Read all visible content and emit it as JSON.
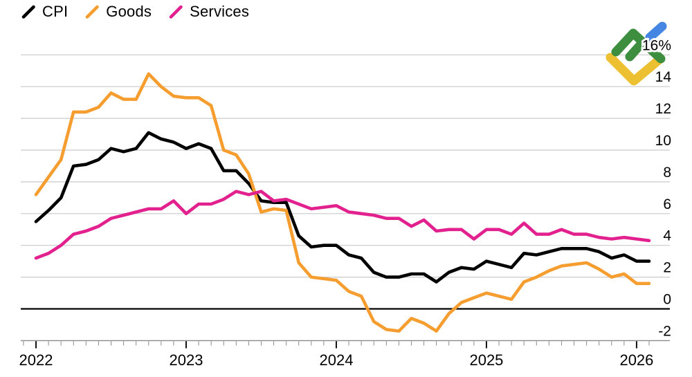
{
  "legend": {
    "items": [
      {
        "label": "CPI",
        "color": "#000000",
        "swatch": "diagonal-line"
      },
      {
        "label": "Goods",
        "color": "#F69D30",
        "swatch": "diagonal-line"
      },
      {
        "label": "Services",
        "color": "#E2208E",
        "swatch": "diagonal-line"
      }
    ]
  },
  "logo": {
    "icon": "litefinance-logo",
    "colors": {
      "green": "#3E8E3F",
      "blue": "#4486E2",
      "yellow": "#EDC032"
    }
  },
  "chart_data": {
    "type": "line",
    "title": "",
    "xlabel": "",
    "ylabel": "",
    "y_unit": "%",
    "grid": "horizontal",
    "legend_position": "top-left",
    "ylim": [
      -2,
      16
    ],
    "yticks": [
      16,
      14,
      12,
      10,
      8,
      6,
      4,
      2,
      0,
      -2
    ],
    "ytick_labels": [
      "16%",
      "14",
      "12",
      "10",
      "8",
      "6",
      "4",
      "2",
      "0",
      "-2"
    ],
    "zero_line": true,
    "x_frequency": "monthly",
    "xticks_month_index": [
      0,
      12,
      24,
      36,
      48
    ],
    "xtick_labels": [
      "2022",
      "2023",
      "2024",
      "2025",
      "2026"
    ],
    "x": [
      "2022-01",
      "2022-02",
      "2022-03",
      "2022-04",
      "2022-05",
      "2022-06",
      "2022-07",
      "2022-08",
      "2022-09",
      "2022-10",
      "2022-11",
      "2022-12",
      "2023-01",
      "2023-02",
      "2023-03",
      "2023-04",
      "2023-05",
      "2023-06",
      "2023-07",
      "2023-08",
      "2023-09",
      "2023-10",
      "2023-11",
      "2023-12",
      "2024-01",
      "2024-02",
      "2024-03",
      "2024-04",
      "2024-05",
      "2024-06",
      "2024-07",
      "2024-08",
      "2024-09",
      "2024-10",
      "2024-11",
      "2024-12",
      "2025-01",
      "2025-02",
      "2025-03",
      "2025-04",
      "2025-05",
      "2025-06",
      "2025-07",
      "2025-08",
      "2025-09",
      "2025-10",
      "2025-11",
      "2025-12",
      "2026-01",
      "2026-02"
    ],
    "series": [
      {
        "name": "CPI",
        "color": "#000000",
        "values": [
          5.5,
          6.2,
          7.0,
          9.0,
          9.1,
          9.4,
          10.1,
          9.9,
          10.1,
          11.1,
          10.7,
          10.5,
          10.1,
          10.4,
          10.1,
          8.7,
          8.7,
          7.9,
          6.8,
          6.7,
          6.7,
          4.6,
          3.9,
          4.0,
          4.0,
          3.4,
          3.2,
          2.3,
          2.0,
          2.0,
          2.2,
          2.2,
          1.7,
          2.3,
          2.6,
          2.5,
          3.0,
          2.8,
          2.6,
          3.5,
          3.4,
          3.6,
          3.8,
          3.8,
          3.8,
          3.6,
          3.2,
          3.4,
          3.0,
          3.0
        ]
      },
      {
        "name": "Goods",
        "color": "#F69D30",
        "values": [
          7.2,
          8.3,
          9.4,
          12.4,
          12.4,
          12.7,
          13.6,
          13.2,
          13.2,
          14.8,
          14.0,
          13.4,
          13.3,
          13.3,
          12.8,
          10.0,
          9.7,
          8.5,
          6.1,
          6.3,
          6.2,
          2.9,
          2.0,
          1.9,
          1.8,
          1.1,
          0.8,
          -0.8,
          -1.3,
          -1.4,
          -0.6,
          -0.9,
          -1.4,
          -0.3,
          0.4,
          0.7,
          1.0,
          0.8,
          0.6,
          1.7,
          2.0,
          2.4,
          2.7,
          2.8,
          2.9,
          2.5,
          2.0,
          2.2,
          1.6,
          1.6
        ]
      },
      {
        "name": "Services",
        "color": "#E2208E",
        "values": [
          3.2,
          3.5,
          4.0,
          4.7,
          4.9,
          5.2,
          5.7,
          5.9,
          6.1,
          6.3,
          6.3,
          6.8,
          6.0,
          6.6,
          6.6,
          6.9,
          7.4,
          7.2,
          7.4,
          6.8,
          6.9,
          6.6,
          6.3,
          6.4,
          6.5,
          6.1,
          6.0,
          5.9,
          5.7,
          5.7,
          5.2,
          5.6,
          4.9,
          5.0,
          5.0,
          4.4,
          5.0,
          5.0,
          4.7,
          5.4,
          4.7,
          4.7,
          5.0,
          4.7,
          4.7,
          4.5,
          4.4,
          4.5,
          4.4,
          4.3
        ]
      }
    ]
  }
}
